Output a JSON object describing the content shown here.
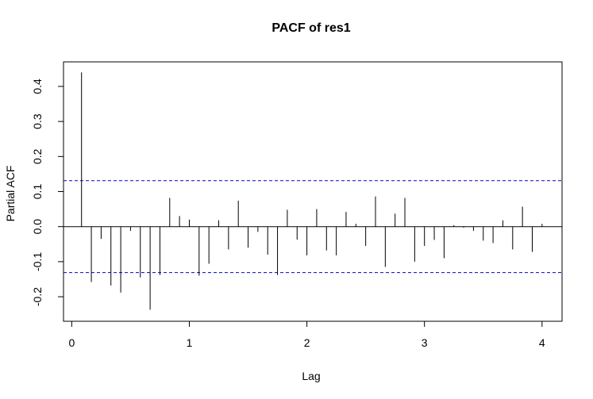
{
  "chart_data": {
    "type": "bar",
    "title": "PACF of res1",
    "xlabel": "Lag",
    "ylabel": "Partial ACF",
    "xlim": [
      -0.07,
      4.17
    ],
    "ylim": [
      -0.27,
      0.47
    ],
    "x_ticks": [
      0,
      1,
      2,
      3,
      4
    ],
    "y_ticks": [
      -0.2,
      -0.1,
      0.0,
      0.1,
      0.2,
      0.3,
      0.4
    ],
    "confidence_band": 0.131,
    "colors": {
      "bars": "#000000",
      "band": "#0000cc",
      "zero_line": "#000000"
    },
    "x": [
      0.0833,
      0.1667,
      0.25,
      0.3333,
      0.4167,
      0.5,
      0.5833,
      0.6667,
      0.75,
      0.8333,
      0.9167,
      1.0,
      1.0833,
      1.1667,
      1.25,
      1.3333,
      1.4167,
      1.5,
      1.5833,
      1.6667,
      1.75,
      1.8333,
      1.9167,
      2.0,
      2.0833,
      2.1667,
      2.25,
      2.3333,
      2.4167,
      2.5,
      2.5833,
      2.6667,
      2.75,
      2.8333,
      2.9167,
      3.0,
      3.0833,
      3.1667,
      3.25,
      3.3333,
      3.4167,
      3.5,
      3.5833,
      3.6667,
      3.75,
      3.8333,
      3.9167,
      4.0
    ],
    "values": [
      0.44,
      -0.158,
      -0.035,
      -0.168,
      -0.188,
      -0.012,
      -0.145,
      -0.237,
      -0.138,
      0.082,
      0.03,
      0.02,
      -0.14,
      -0.106,
      0.018,
      -0.065,
      0.074,
      -0.06,
      -0.015,
      -0.08,
      -0.138,
      0.048,
      -0.037,
      -0.082,
      0.05,
      -0.068,
      -0.082,
      0.042,
      0.008,
      -0.055,
      0.086,
      -0.115,
      0.037,
      0.082,
      -0.1,
      -0.055,
      -0.038,
      -0.09,
      0.004,
      -0.003,
      -0.012,
      -0.04,
      -0.047,
      0.018,
      -0.065,
      0.057,
      -0.072,
      0.008
    ]
  }
}
